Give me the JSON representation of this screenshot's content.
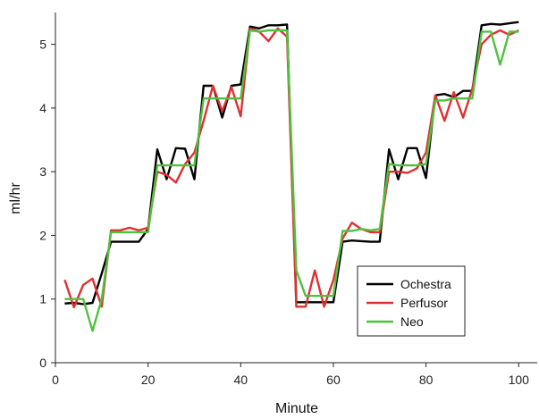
{
  "chart_data": {
    "type": "line",
    "xlabel": "Minute",
    "ylabel": "ml/hr",
    "xlim": [
      0,
      104
    ],
    "ylim": [
      0,
      5.5
    ],
    "xticks": [
      0,
      20,
      40,
      60,
      80,
      100
    ],
    "yticks": [
      0,
      1,
      2,
      3,
      4,
      5
    ],
    "grid": false,
    "legend_position": "bottom-right",
    "series": [
      {
        "name": "Ochestra",
        "color": "#000000",
        "x": [
          2,
          4,
          6,
          8,
          10,
          12,
          14,
          16,
          18,
          20,
          22,
          24,
          26,
          28,
          30,
          32,
          34,
          36,
          38,
          40,
          42,
          44,
          46,
          48,
          50,
          52,
          54,
          56,
          58,
          60,
          62,
          64,
          66,
          68,
          70,
          72,
          74,
          76,
          78,
          80,
          82,
          84,
          86,
          88,
          90,
          92,
          94,
          96,
          98,
          100
        ],
        "values": [
          0.93,
          0.94,
          0.92,
          0.94,
          1.4,
          1.9,
          1.9,
          1.9,
          1.9,
          2.1,
          3.35,
          2.88,
          3.37,
          3.36,
          2.88,
          4.35,
          4.35,
          3.85,
          4.35,
          4.37,
          5.28,
          5.25,
          5.3,
          5.3,
          5.31,
          0.95,
          0.95,
          0.95,
          0.95,
          0.95,
          1.9,
          1.92,
          1.91,
          1.9,
          1.9,
          3.35,
          2.88,
          3.37,
          3.37,
          2.9,
          4.2,
          4.22,
          4.17,
          4.27,
          4.27,
          5.3,
          5.32,
          5.31,
          5.33,
          5.35
        ]
      },
      {
        "name": "Perfusor",
        "color": "#e03030",
        "x": [
          2,
          4,
          6,
          8,
          10,
          12,
          14,
          16,
          18,
          20,
          22,
          24,
          26,
          28,
          30,
          32,
          34,
          36,
          38,
          40,
          42,
          44,
          46,
          48,
          50,
          52,
          54,
          56,
          58,
          60,
          62,
          64,
          66,
          68,
          70,
          72,
          74,
          76,
          78,
          80,
          82,
          84,
          86,
          88,
          90,
          92,
          94,
          96,
          98,
          100
        ],
        "values": [
          1.3,
          0.87,
          1.22,
          1.32,
          0.88,
          2.08,
          2.08,
          2.12,
          2.08,
          2.12,
          3.0,
          2.95,
          2.83,
          3.12,
          3.3,
          3.8,
          4.35,
          3.95,
          4.33,
          3.87,
          5.25,
          5.2,
          5.05,
          5.25,
          5.12,
          0.88,
          0.88,
          1.45,
          0.88,
          1.3,
          1.95,
          2.2,
          2.1,
          2.05,
          2.05,
          3.0,
          3.0,
          2.98,
          3.05,
          3.3,
          4.2,
          3.8,
          4.25,
          3.85,
          4.3,
          5.0,
          5.15,
          5.22,
          5.15,
          5.22
        ]
      },
      {
        "name": "Neo",
        "color": "#4ec23e",
        "x": [
          2,
          4,
          6,
          8,
          10,
          12,
          14,
          16,
          18,
          20,
          22,
          24,
          26,
          28,
          30,
          32,
          34,
          36,
          38,
          40,
          42,
          44,
          46,
          48,
          50,
          52,
          54,
          56,
          58,
          60,
          62,
          64,
          66,
          68,
          70,
          72,
          74,
          76,
          78,
          80,
          82,
          84,
          86,
          88,
          90,
          92,
          94,
          96,
          98,
          100
        ],
        "values": [
          1.0,
          1.0,
          1.0,
          0.5,
          1.0,
          2.05,
          2.05,
          2.05,
          2.05,
          2.05,
          3.1,
          3.1,
          3.1,
          3.1,
          3.1,
          4.15,
          4.15,
          4.15,
          4.15,
          4.15,
          5.22,
          5.2,
          5.22,
          5.22,
          5.22,
          1.45,
          1.05,
          1.05,
          1.05,
          1.05,
          2.07,
          2.07,
          2.1,
          2.08,
          2.1,
          3.12,
          3.1,
          3.1,
          3.1,
          3.12,
          4.12,
          4.12,
          4.15,
          4.15,
          4.15,
          5.2,
          5.2,
          4.68,
          5.2,
          5.2
        ]
      }
    ]
  }
}
